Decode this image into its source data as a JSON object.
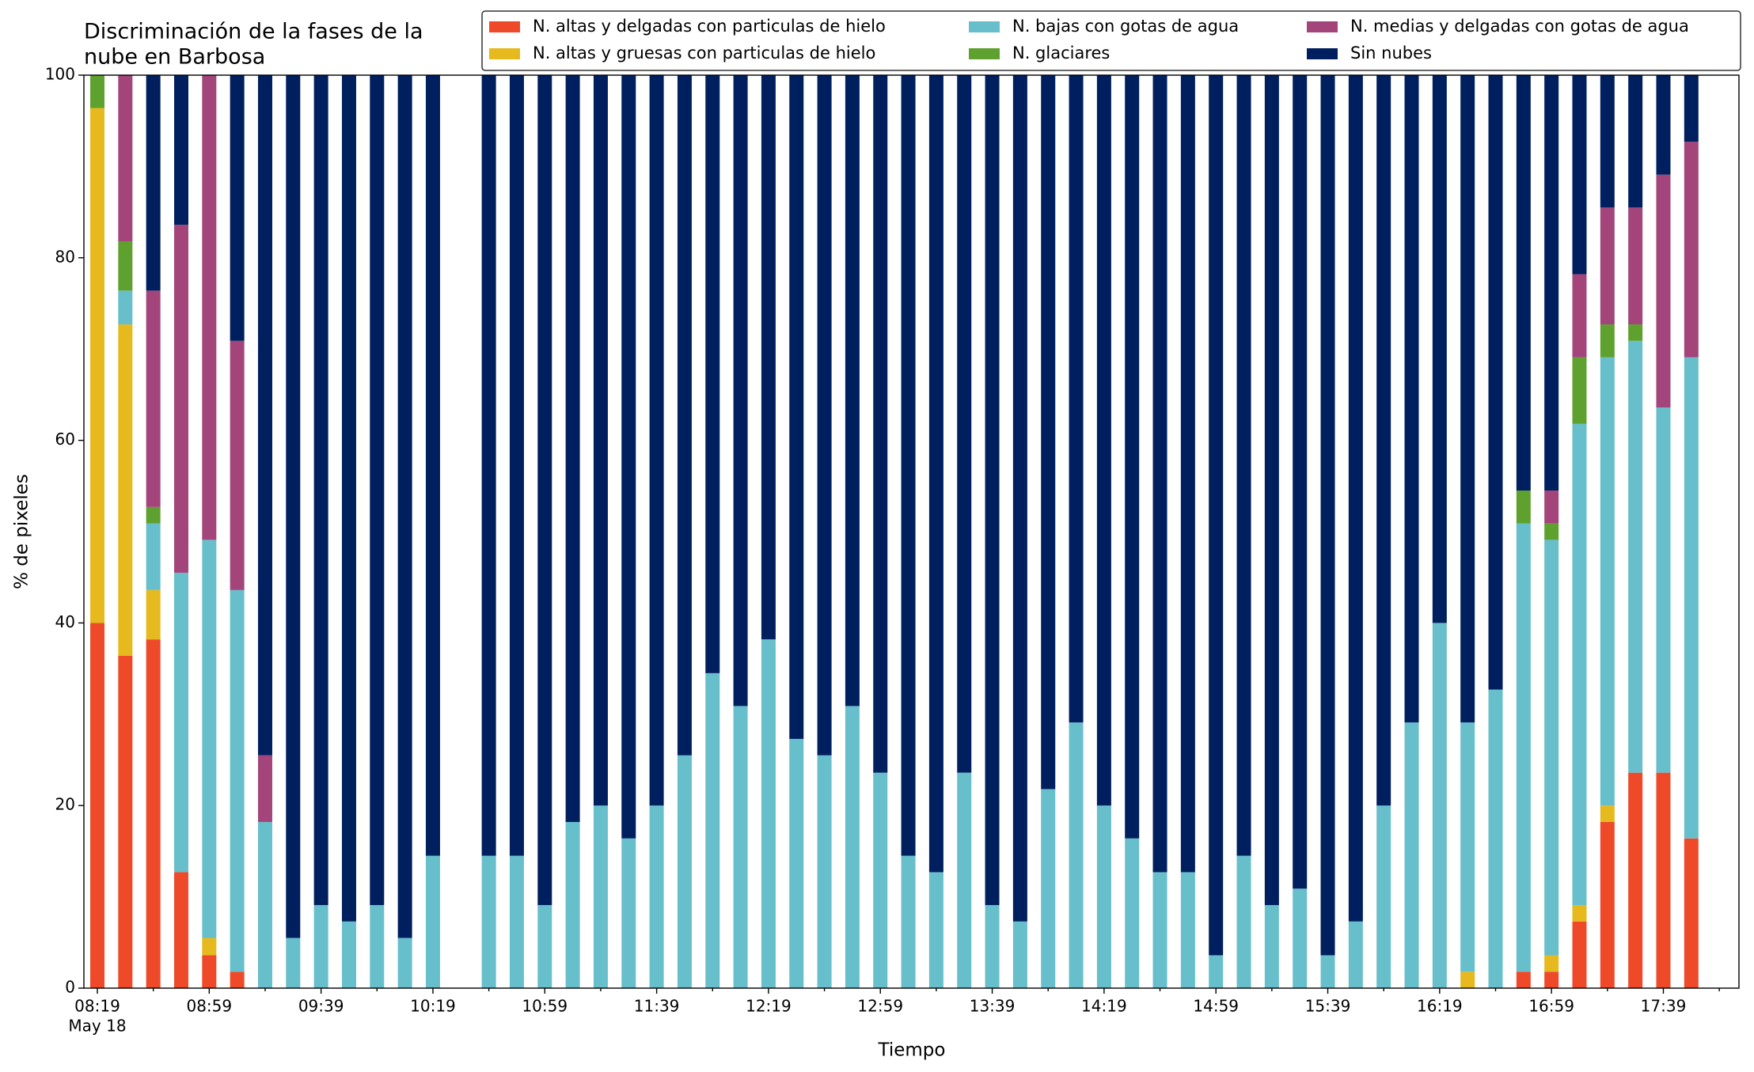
{
  "chart_data": {
    "type": "stacked-bar",
    "title": [
      "Discriminación de la fases de la",
      "nube en Barbosa"
    ],
    "x_label": "Tiempo",
    "y_label": "% de pixeles",
    "date_label": "May 18",
    "categories": [
      "08:19",
      null,
      null,
      null,
      "08:59",
      null,
      null,
      null,
      "09:39",
      null,
      null,
      null,
      "10:19",
      null,
      null,
      null,
      "10:59",
      null,
      null,
      null,
      "11:39",
      null,
      null,
      null,
      "12:19",
      null,
      null,
      null,
      "12:59",
      null,
      null,
      null,
      "13:39",
      null,
      null,
      null,
      "14:19",
      null,
      null,
      null,
      "14:59",
      null,
      null,
      null,
      "15:39",
      null,
      null,
      null,
      "16:19",
      null,
      null,
      null,
      "16:59",
      null,
      null,
      null,
      "17:39",
      null
    ],
    "ylim": [
      0,
      100
    ],
    "yticks": [
      0,
      20,
      40,
      60,
      80,
      100
    ],
    "legend": "top-right",
    "series": [
      {
        "name": "N. altas y delgadas con particulas de hielo",
        "color": "#ee4a2a",
        "values": [
          40,
          36.4,
          38.2,
          12.7,
          3.6,
          1.8,
          0,
          0,
          0,
          0,
          0,
          0,
          0,
          null,
          0,
          0,
          0,
          0,
          0,
          0,
          0,
          0,
          0,
          0,
          0,
          0,
          0,
          0,
          0,
          0,
          0,
          0,
          0,
          0,
          0,
          0,
          0,
          0,
          0,
          0,
          0,
          0,
          0,
          0,
          0,
          0,
          0,
          0,
          0,
          0,
          0,
          1.8,
          1.8,
          7.3,
          18.2,
          23.6,
          23.6,
          16.4
        ]
      },
      {
        "name": "N. altas y gruesas con particulas de hielo",
        "color": "#e6b91e",
        "values": [
          56.4,
          36.3,
          5.4,
          0,
          1.9,
          0,
          0,
          0,
          0,
          0,
          0,
          0,
          0,
          null,
          0,
          0,
          0,
          0,
          0,
          0,
          0,
          0,
          0,
          0,
          0,
          0,
          0,
          0,
          0,
          0,
          0,
          0,
          0,
          0,
          0,
          0,
          0,
          0,
          0,
          0,
          0,
          0,
          0,
          0,
          0,
          0,
          0,
          0,
          0,
          1.8,
          0,
          0,
          1.8,
          1.8,
          1.8,
          0,
          0,
          0
        ]
      },
      {
        "name": "N. bajas con gotas de agua",
        "color": "#67bfcb",
        "values": [
          0,
          3.7,
          7.3,
          32.8,
          43.6,
          41.8,
          18.2,
          5.5,
          9.1,
          7.3,
          9.1,
          5.5,
          14.5,
          null,
          14.5,
          14.5,
          9.1,
          18.2,
          20,
          16.4,
          20,
          25.5,
          34.5,
          30.9,
          38.2,
          27.3,
          25.5,
          30.9,
          23.6,
          14.5,
          12.7,
          23.6,
          9.1,
          7.3,
          21.8,
          29.1,
          20,
          16.4,
          12.7,
          12.7,
          3.6,
          14.5,
          9.1,
          10.9,
          3.6,
          7.3,
          20,
          29.1,
          40,
          27.3,
          32.7,
          49.1,
          45.5,
          52.7,
          49.1,
          47.3,
          40,
          52.7
        ]
      },
      {
        "name": "N. glaciares",
        "color": "#5ea12e",
        "values": [
          3.6,
          5.4,
          1.8,
          0,
          0,
          0,
          0,
          0,
          0,
          0,
          0,
          0,
          0,
          null,
          0,
          0,
          0,
          0,
          0,
          0,
          0,
          0,
          0,
          0,
          0,
          0,
          0,
          0,
          0,
          0,
          0,
          0,
          0,
          0,
          0,
          0,
          0,
          0,
          0,
          0,
          0,
          0,
          0,
          0,
          0,
          0,
          0,
          0,
          0,
          0,
          0,
          3.6,
          1.8,
          7.3,
          3.6,
          1.8,
          0,
          0
        ]
      },
      {
        "name": "N. medias y delgadas con gotas de agua",
        "color": "#a3457a",
        "values": [
          0,
          18.2,
          23.7,
          38.1,
          50.9,
          27.3,
          7.3,
          0,
          0,
          0,
          0,
          0,
          0,
          null,
          0,
          0,
          0,
          0,
          0,
          0,
          0,
          0,
          0,
          0,
          0,
          0,
          0,
          0,
          0,
          0,
          0,
          0,
          0,
          0,
          0,
          0,
          0,
          0,
          0,
          0,
          0,
          0,
          0,
          0,
          0,
          0,
          0,
          0,
          0,
          0,
          0,
          0,
          3.6,
          9.1,
          12.8,
          12.8,
          25.5,
          23.6
        ]
      },
      {
        "name": "Sin nubes",
        "color": "#001f5f",
        "values": [
          0,
          0,
          23.6,
          16.4,
          0,
          29.1,
          74.5,
          94.5,
          90.9,
          92.7,
          90.9,
          94.5,
          85.5,
          null,
          85.5,
          85.5,
          90.9,
          81.8,
          80,
          83.6,
          80,
          74.5,
          65.5,
          69.1,
          61.8,
          72.7,
          74.5,
          69.1,
          76.4,
          85.5,
          87.3,
          76.4,
          90.9,
          92.7,
          78.2,
          70.9,
          80,
          83.6,
          87.3,
          87.3,
          96.4,
          85.5,
          90.9,
          89.1,
          96.4,
          92.7,
          80,
          70.9,
          60,
          70.9,
          67.3,
          45.5,
          45.5,
          21.8,
          14.5,
          14.5,
          10.9,
          7.3
        ]
      }
    ]
  }
}
